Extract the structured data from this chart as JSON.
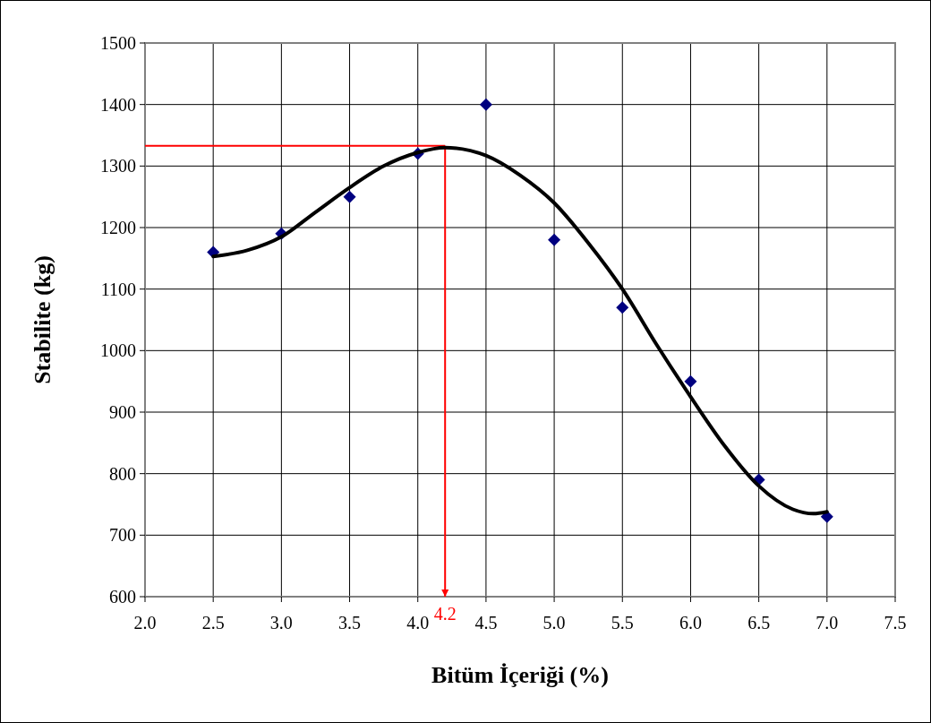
{
  "chart_data": {
    "type": "scatter",
    "xlabel": "Bitüm İçeriği (%)",
    "ylabel": "Stabilite (kg)",
    "series": [
      {
        "color": "#000080",
        "marker": "diamond",
        "x": [
          2.5,
          3.0,
          3.5,
          4.0,
          4.5,
          5.0,
          5.5,
          6.0,
          6.5,
          7.0
        ],
        "values": [
          1160,
          1190,
          1250,
          1320,
          1400,
          1180,
          1070,
          950,
          790,
          730
        ]
      },
      {
        "type": "line",
        "color": "#000000",
        "marker": "none",
        "line_style": "solid",
        "x": [
          2.5,
          2.75,
          3.0,
          3.25,
          3.5,
          3.75,
          4.0,
          4.2,
          4.5,
          4.75,
          5.0,
          5.25,
          5.5,
          5.75,
          6.0,
          6.25,
          6.5,
          6.75,
          6.9,
          7.0
        ],
        "values": [
          1153,
          1163,
          1185,
          1225,
          1265,
          1300,
          1322,
          1330,
          1317,
          1285,
          1240,
          1175,
          1100,
          1010,
          925,
          845,
          780,
          742,
          735,
          738
        ]
      }
    ],
    "ref_lines": [
      {
        "axis": "x",
        "value": 4.2,
        "label": "4.2",
        "color": "#ff0000"
      },
      {
        "axis": "y",
        "value": 1333,
        "color": "#ff0000"
      }
    ],
    "xlim": [
      2.0,
      7.5
    ],
    "xticks": [
      {
        "value": 2.0,
        "label": "2.0"
      },
      2.5,
      {
        "value": 3.0,
        "label": "3.0"
      },
      3.5,
      {
        "value": 4.0,
        "label": "4.0"
      },
      4.5,
      {
        "value": 5.0,
        "label": "5.0"
      },
      5.5,
      {
        "value": 6.0,
        "label": "6.0"
      },
      6.5,
      {
        "value": 7.0,
        "label": "7.0"
      },
      7.5
    ],
    "ylim": [
      600,
      1500
    ],
    "yticks": [
      600,
      700,
      800,
      900,
      1000,
      1100,
      1200,
      1300,
      1400,
      1500
    ],
    "grid": true
  }
}
